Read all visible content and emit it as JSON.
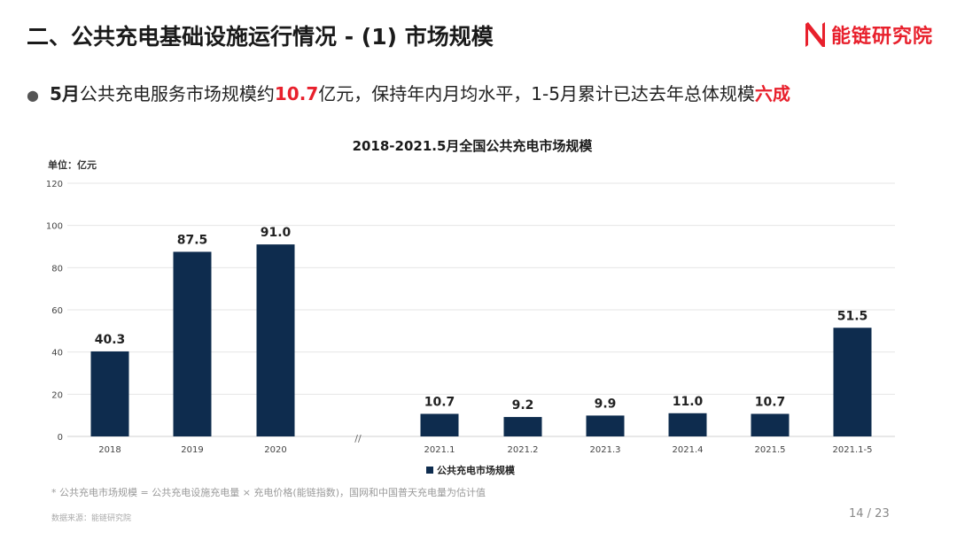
{
  "slide": {
    "title": "二、公共充电基础设施运行情况 - (1) 市场规模",
    "logo_text": "能链研究院",
    "bullet": {
      "p1": "5月",
      "p2": "公共充电服务市场规模约",
      "p3": "10.7",
      "p4": "亿元，保持年内月均水平，1-5月累计已达去年总体规模",
      "p5": "六成"
    },
    "footnote": "* 公共充电市场规模 = 公共充电设施充电量 × 充电价格(能链指数)，国网和中国普天充电量为估计值",
    "source": "数据来源：能链研究院",
    "page_number": "14 / 23"
  },
  "colors": {
    "bar": "#0e2c4e",
    "accent_red": "#e8202c",
    "grid": "#e6e6e6",
    "axis_text": "#444444"
  },
  "chart_data": {
    "type": "bar",
    "title": "2018-2021.5月全国公共充电市场规模",
    "unit_label": "单位：亿元",
    "categories": [
      "2018",
      "2019",
      "2020",
      "2021.1",
      "2021.2",
      "2021.3",
      "2021.4",
      "2021.5",
      "2021.1-5"
    ],
    "series": [
      {
        "name": "公共充电市场规模",
        "values": [
          40.3,
          87.5,
          91.0,
          10.7,
          9.2,
          9.9,
          11.0,
          10.7,
          51.5
        ]
      }
    ],
    "data_labels": [
      "40.3",
      "87.5",
      "91.0",
      "10.7",
      "9.2",
      "9.9",
      "11.0",
      "10.7",
      "51.5"
    ],
    "y_ticks": [
      "0",
      "20",
      "40",
      "60",
      "80",
      "100",
      "120"
    ],
    "ylim": [
      0,
      120
    ],
    "axis_break_mark": "//",
    "grid": true,
    "legend_position": "bottom-center"
  }
}
